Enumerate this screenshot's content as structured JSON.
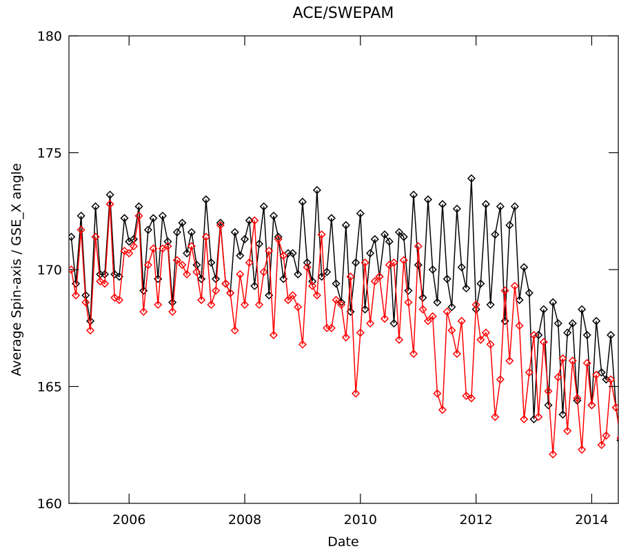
{
  "chart_data": {
    "type": "line",
    "title": "ACE/SWEPAM",
    "x_label": "Date",
    "y_label": "Average Spin-axis / GSE_X angle",
    "x": [
      2005.0,
      2005.08,
      2005.17,
      2005.25,
      2005.33,
      2005.42,
      2005.5,
      2005.58,
      2005.67,
      2005.75,
      2005.83,
      2005.92,
      2006.0,
      2006.08,
      2006.17,
      2006.25,
      2006.33,
      2006.42,
      2006.5,
      2006.58,
      2006.67,
      2006.75,
      2006.83,
      2006.92,
      2007.0,
      2007.08,
      2007.17,
      2007.25,
      2007.33,
      2007.42,
      2007.5,
      2007.58,
      2007.67,
      2007.75,
      2007.83,
      2007.92,
      2008.0,
      2008.08,
      2008.17,
      2008.25,
      2008.33,
      2008.42,
      2008.5,
      2008.58,
      2008.67,
      2008.75,
      2008.83,
      2008.92,
      2009.0,
      2009.08,
      2009.17,
      2009.25,
      2009.33,
      2009.42,
      2009.5,
      2009.58,
      2009.67,
      2009.75,
      2009.83,
      2009.92,
      2010.0,
      2010.08,
      2010.17,
      2010.25,
      2010.33,
      2010.42,
      2010.5,
      2010.58,
      2010.67,
      2010.75,
      2010.83,
      2010.92,
      2011.0,
      2011.08,
      2011.17,
      2011.25,
      2011.33,
      2011.42,
      2011.5,
      2011.58,
      2011.67,
      2011.75,
      2011.83,
      2011.92,
      2012.0,
      2012.08,
      2012.17,
      2012.25,
      2012.33,
      2012.42,
      2012.5,
      2012.58,
      2012.67,
      2012.75,
      2012.83,
      2012.92,
      2013.0,
      2013.08,
      2013.17,
      2013.25,
      2013.33,
      2013.42,
      2013.5,
      2013.58,
      2013.67,
      2013.75,
      2013.83,
      2013.92,
      2014.0,
      2014.08,
      2014.17,
      2014.25,
      2014.33,
      2014.42,
      2014.5
    ],
    "series": [
      {
        "color": "#000000",
        "values": [
          171.4,
          169.4,
          172.3,
          168.9,
          167.8,
          172.7,
          169.8,
          169.8,
          173.2,
          169.8,
          169.7,
          172.2,
          171.2,
          171.3,
          172.7,
          169.1,
          171.7,
          172.2,
          169.6,
          172.3,
          171.2,
          168.6,
          171.6,
          172.0,
          170.7,
          171.6,
          170.2,
          169.6,
          173.0,
          170.3,
          169.6,
          172.0,
          169.4,
          169.0,
          171.6,
          170.6,
          171.3,
          172.1,
          169.3,
          171.1,
          172.7,
          168.9,
          172.3,
          171.4,
          169.6,
          170.7,
          170.7,
          169.8,
          172.9,
          170.3,
          169.5,
          173.4,
          169.7,
          169.9,
          172.2,
          169.4,
          168.6,
          171.9,
          168.2,
          170.3,
          172.4,
          168.3,
          170.7,
          171.3,
          169.7,
          171.5,
          171.2,
          167.7,
          171.6,
          171.4,
          169.1,
          173.2,
          170.2,
          168.8,
          173.0,
          170.0,
          168.6,
          172.8,
          169.6,
          168.4,
          172.6,
          170.1,
          169.2,
          173.9,
          168.3,
          169.4,
          172.8,
          168.5,
          171.5,
          172.7,
          167.8,
          171.9,
          172.7,
          168.7,
          170.1,
          169.0,
          163.6,
          167.2,
          168.3,
          164.2,
          168.6,
          167.7,
          163.8,
          167.3,
          167.7,
          164.4,
          168.3,
          167.2,
          164.2,
          167.8,
          165.6,
          165.3,
          167.2,
          164.1,
          162.7
        ]
      },
      {
        "color": "#ff0000",
        "values": [
          170.0,
          168.9,
          171.7,
          168.6,
          167.4,
          171.4,
          169.5,
          169.4,
          172.8,
          168.8,
          168.7,
          170.8,
          170.7,
          171.0,
          172.3,
          168.2,
          170.2,
          170.9,
          168.5,
          170.9,
          171.0,
          168.2,
          170.4,
          170.2,
          169.8,
          171.0,
          169.9,
          168.7,
          171.4,
          168.5,
          169.1,
          171.9,
          169.4,
          169.0,
          167.4,
          169.8,
          168.5,
          170.3,
          172.1,
          168.5,
          169.9,
          170.8,
          167.2,
          171.3,
          170.6,
          168.7,
          168.9,
          168.4,
          166.8,
          170.1,
          169.3,
          168.9,
          171.5,
          167.5,
          167.5,
          168.7,
          168.5,
          167.1,
          169.7,
          164.7,
          167.3,
          170.3,
          167.7,
          169.5,
          169.7,
          167.9,
          170.2,
          170.3,
          167.0,
          170.4,
          168.6,
          166.4,
          171.0,
          168.3,
          167.8,
          168.0,
          164.7,
          164.0,
          168.2,
          167.4,
          166.4,
          167.8,
          164.6,
          164.5,
          168.5,
          167.0,
          167.3,
          166.8,
          163.7,
          165.3,
          169.1,
          166.1,
          169.3,
          167.6,
          163.6,
          165.6,
          167.2,
          163.7,
          166.9,
          164.8,
          162.1,
          165.4,
          166.2,
          163.1,
          166.1,
          164.5,
          162.3,
          166.0,
          164.2,
          165.5,
          162.5,
          162.9,
          165.3,
          164.1,
          162.8
        ]
      }
    ],
    "xlim": [
      2004.96,
      2014.46
    ],
    "xticks": [
      2006,
      2008,
      2010,
      2012,
      2014
    ],
    "ylim": [
      160,
      180
    ],
    "yticks": [
      160,
      165,
      170,
      175,
      180
    ],
    "marker": "diamond"
  }
}
